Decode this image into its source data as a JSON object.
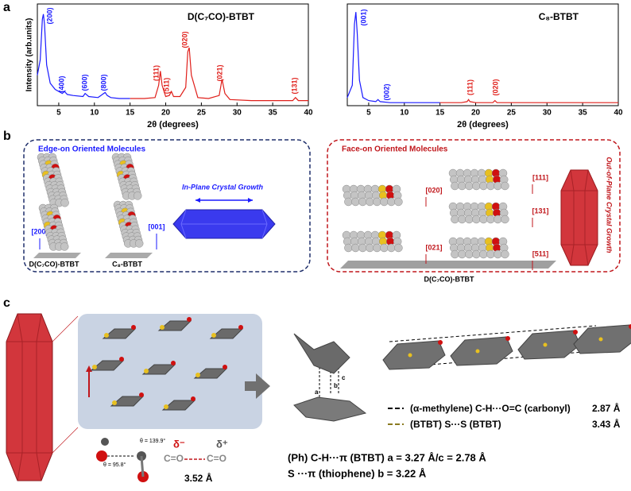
{
  "chart_data": [
    {
      "type": "line",
      "title": "D(C₇CO)-BTBT",
      "ylabel": "Intensity (arb.units)",
      "xlabel": "2θ (degrees)",
      "xlim": [
        2,
        40
      ],
      "xticks": [
        5,
        10,
        15,
        20,
        25,
        30,
        35,
        40
      ],
      "ylim": [
        0,
        100
      ],
      "series": [
        {
          "color": "#1a1aff",
          "x": [
            2,
            2.4,
            2.7,
            2.85,
            3.0,
            3.3,
            3.8,
            4.5,
            5.5,
            5.8,
            6.2,
            7,
            8.4,
            8.7,
            9.2,
            10.5,
            11.5,
            11.8,
            12.3,
            13.5,
            15
          ],
          "values": [
            30,
            45,
            85,
            90,
            80,
            40,
            22,
            16,
            12,
            14,
            11,
            10,
            9,
            12,
            9,
            8,
            13,
            10,
            8,
            7,
            7
          ]
        },
        {
          "color": "#e0201b",
          "x": [
            15,
            17,
            18.5,
            19.0,
            19.25,
            19.5,
            20,
            20.5,
            20.8,
            21.1,
            22,
            22.8,
            23.1,
            23.3,
            23.6,
            24.5,
            26,
            27.5,
            27.9,
            28.3,
            29,
            32,
            35,
            37.8,
            38.2,
            38.6,
            40
          ],
          "values": [
            7,
            7,
            8,
            20,
            34,
            20,
            9,
            10,
            14,
            9,
            9,
            18,
            53,
            57,
            30,
            8,
            7,
            10,
            26,
            12,
            6,
            5,
            5,
            5,
            8,
            5,
            5
          ]
        }
      ],
      "annotations": [
        {
          "text": "(200)",
          "color": "#1a1aff"
        },
        {
          "text": "(400)",
          "color": "#1a1aff"
        },
        {
          "text": "(600)",
          "color": "#1a1aff"
        },
        {
          "text": "(800)",
          "color": "#1a1aff"
        },
        {
          "text": "(111)",
          "color": "#e0201b"
        },
        {
          "text": "(511)",
          "color": "#e0201b"
        },
        {
          "text": "(020)",
          "color": "#e0201b"
        },
        {
          "text": "(021)",
          "color": "#e0201b"
        },
        {
          "text": "(131)",
          "color": "#e0201b"
        }
      ]
    },
    {
      "type": "line",
      "title": "C₈-BTBT",
      "xlabel": "2θ (degrees)",
      "xlim": [
        2,
        40
      ],
      "xticks": [
        5,
        10,
        15,
        20,
        25,
        30,
        35,
        40
      ],
      "ylim": [
        0,
        100
      ],
      "series": [
        {
          "color": "#1a1aff",
          "x": [
            2,
            2.7,
            3.0,
            3.2,
            3.4,
            3.7,
            4.2,
            5,
            6,
            6.3,
            6.6,
            8,
            10,
            15
          ],
          "values": [
            8,
            20,
            80,
            92,
            70,
            25,
            8,
            5,
            4,
            6,
            4,
            3,
            3,
            3
          ]
        },
        {
          "color": "#e0201b",
          "x": [
            15,
            18,
            18.8,
            19,
            19.2,
            20,
            22.4,
            22.7,
            23,
            25,
            30,
            40
          ],
          "values": [
            3,
            3,
            4,
            6,
            4,
            3,
            3,
            5,
            3,
            3,
            3,
            3
          ]
        }
      ],
      "annotations": [
        {
          "text": "(001)",
          "color": "#1a1aff"
        },
        {
          "text": "(002)",
          "color": "#1a1aff"
        },
        {
          "text": "(111)",
          "color": "#e0201b"
        },
        {
          "text": "(020)",
          "color": "#e0201b"
        }
      ]
    }
  ],
  "panels": {
    "a": "a",
    "b": "b",
    "c": "c"
  },
  "panel_b": {
    "edge_title": "Edge-on Oriented Molecules",
    "in_plane": "In-Plane Crystal Growth",
    "dir_200": "[200]",
    "dir_001": "[001]",
    "label_dc7co": "D(C₇CO)-BTBT",
    "label_c8": "C₈-BTBT",
    "face_title": "Face-on Oriented Molecules",
    "out_of_plane": "Out-of-Plane Crystal Growth",
    "dirs": [
      "[020]",
      "[111]",
      "[131]",
      "[021]",
      "[511]"
    ],
    "face_label": "D(C₇CO)-BTBT"
  },
  "panel_c": {
    "theta1": "θ = 139.9°",
    "theta2": "θ = 95.8°",
    "delta_minus": "δ⁻",
    "delta_plus": "δ⁺",
    "co1": "C=O",
    "co2": "C=O",
    "dist": "3.52 Å",
    "a": "a",
    "b": "b",
    "c": "c",
    "legend1": "(α-methylene) C-H···O=C (carbonyl)",
    "legend1_value": "2.87 Å",
    "legend2": "(BTBT) S···S (BTBT)",
    "legend2_value": "3.43 Å",
    "line1": "(Ph) C-H···π (BTBT) a = 3.27 Å/c = 2.78 Å",
    "line2": "S ···π (thiophene)  b = 3.22 Å"
  }
}
